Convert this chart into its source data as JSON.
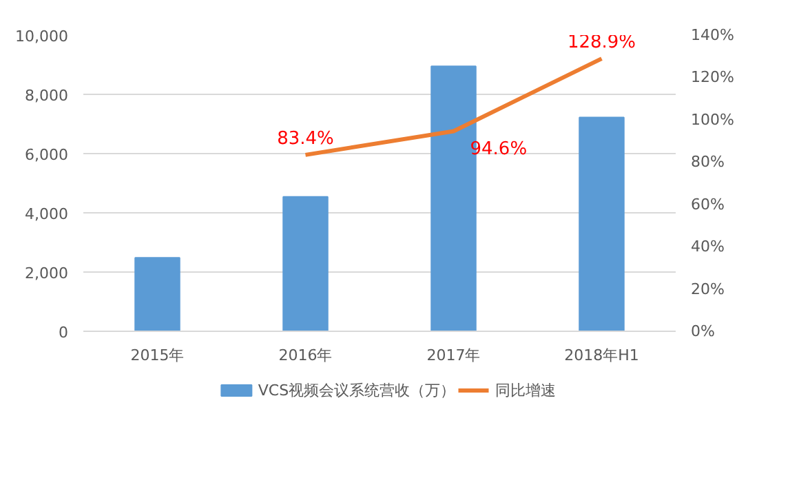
{
  "chart_data": {
    "type": "bar",
    "categories": [
      "2015年",
      "2016年",
      "2017年",
      "2018年H1"
    ],
    "series": [
      {
        "name": "VCS视频会议系统营收（万）",
        "color": "#5b9bd5",
        "values": [
          2480,
          4540,
          8950,
          7220
        ]
      },
      {
        "name": "同比增速",
        "type": "line",
        "axis": "y2",
        "color": "#ed7d31",
        "values": [
          null,
          83.4,
          94.6,
          128.9
        ],
        "value_labels": [
          null,
          "83.4%",
          "94.6%",
          "128.9%"
        ]
      }
    ],
    "ylim": [
      0,
      10000
    ],
    "yticks": [
      {
        "value": 0,
        "label": "0"
      },
      {
        "value": 2000,
        "label": "2,000"
      },
      {
        "value": 4000,
        "label": "4,000"
      },
      {
        "value": 6000,
        "label": "6,000"
      },
      {
        "value": 8000,
        "label": "8,000"
      },
      {
        "value": 10000,
        "label": "10,000"
      }
    ],
    "y2lim": [
      0,
      140
    ],
    "y2ticks": [
      {
        "value": 0,
        "label": "0%"
      },
      {
        "value": 20,
        "label": "20%"
      },
      {
        "value": 40,
        "label": "40%"
      },
      {
        "value": 60,
        "label": "60%"
      },
      {
        "value": 80,
        "label": "80%"
      },
      {
        "value": 100,
        "label": "100%"
      },
      {
        "value": 120,
        "label": "120%"
      },
      {
        "value": 140,
        "label": "140%"
      }
    ],
    "grid": "y",
    "legend": "bottom",
    "marker": "none",
    "line_style": "solid"
  }
}
